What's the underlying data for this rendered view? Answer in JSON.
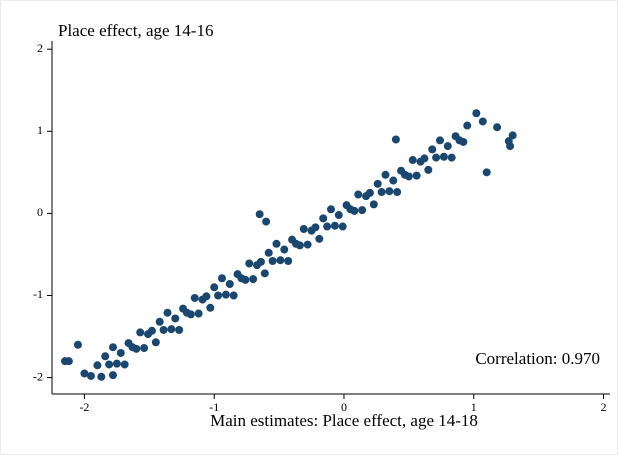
{
  "chart_data": {
    "type": "scatter",
    "title": "Place effect, age 14-16",
    "x_label": "Main estimates: Place effect, age 14-18",
    "annotation": "Correlation: 0.970",
    "color": "#1a476f",
    "xlim": [
      -2.25,
      2.05
    ],
    "ylim": [
      -2.2,
      2.1
    ],
    "xticks": [
      -2,
      -1,
      0,
      1,
      2
    ],
    "yticks": [
      -2,
      -1,
      0,
      1,
      2
    ],
    "x": [
      -1.9,
      -1.87,
      -1.84,
      -1.81,
      -1.78,
      -1.75,
      -1.72,
      -1.69,
      -1.66,
      -1.63,
      -1.6,
      -1.57,
      -1.54,
      -1.51,
      -1.48,
      -1.45,
      -1.42,
      -1.39,
      -1.36,
      -1.33,
      -1.3,
      -1.27,
      -1.24,
      -1.21,
      -1.18,
      -1.15,
      -1.12,
      -1.09,
      -1.06,
      -1.03,
      -1.0,
      -0.97,
      -0.94,
      -0.91,
      -0.88,
      -0.85,
      -0.82,
      -0.79,
      -0.76,
      -0.73,
      -0.7,
      -0.67,
      -0.64,
      -0.61,
      -0.58,
      -0.55,
      -0.52,
      -0.49,
      -0.46,
      -0.43,
      -0.4,
      -0.37,
      -0.34,
      -0.31,
      -0.28,
      -0.25,
      -0.22,
      -0.19,
      -0.16,
      -0.13,
      -0.1,
      -0.07,
      -0.04,
      -0.01,
      0.02,
      0.05,
      0.08,
      0.11,
      0.14,
      0.17,
      0.2,
      0.23,
      0.26,
      0.29,
      0.32,
      0.35,
      0.38,
      0.41,
      0.44,
      0.47,
      0.5,
      0.53,
      0.56,
      0.59,
      0.62,
      0.65,
      0.68,
      0.71,
      0.74,
      0.77,
      0.8,
      0.83,
      0.86,
      0.89,
      0.92,
      0.95,
      -2.15,
      -2.12,
      -2.05,
      -2.0,
      -1.95,
      -1.78,
      1.02,
      1.07,
      1.18,
      1.3,
      1.27,
      1.28,
      1.1,
      0.4,
      -0.65,
      -0.6
    ],
    "y": [
      -1.85,
      -1.99,
      -1.74,
      -1.84,
      -1.63,
      -1.83,
      -1.7,
      -1.84,
      -1.58,
      -1.63,
      -1.65,
      -1.45,
      -1.64,
      -1.47,
      -1.43,
      -1.57,
      -1.32,
      -1.42,
      -1.21,
      -1.41,
      -1.28,
      -1.42,
      -1.16,
      -1.21,
      -1.23,
      -1.03,
      -1.22,
      -1.05,
      -1.01,
      -1.15,
      -0.9,
      -1.0,
      -0.79,
      -0.99,
      -0.86,
      -1.0,
      -0.74,
      -0.79,
      -0.81,
      -0.61,
      -0.8,
      -0.63,
      -0.59,
      -0.73,
      -0.48,
      -0.58,
      -0.37,
      -0.57,
      -0.44,
      -0.58,
      -0.32,
      -0.37,
      -0.39,
      -0.19,
      -0.38,
      -0.21,
      -0.17,
      -0.31,
      -0.06,
      -0.16,
      0.05,
      -0.15,
      -0.02,
      -0.16,
      0.1,
      0.05,
      0.03,
      0.23,
      0.04,
      0.21,
      0.25,
      0.11,
      0.36,
      0.26,
      0.47,
      0.27,
      0.4,
      0.26,
      0.52,
      0.47,
      0.45,
      0.65,
      0.46,
      0.63,
      0.67,
      0.53,
      0.78,
      0.68,
      0.89,
      0.69,
      0.82,
      0.68,
      0.94,
      0.89,
      0.87,
      1.07,
      -1.8,
      -1.8,
      -1.6,
      -1.95,
      -1.98,
      -1.97,
      1.22,
      1.12,
      1.05,
      0.95,
      0.88,
      0.82,
      0.5,
      0.9,
      -0.01,
      -0.1
    ]
  }
}
